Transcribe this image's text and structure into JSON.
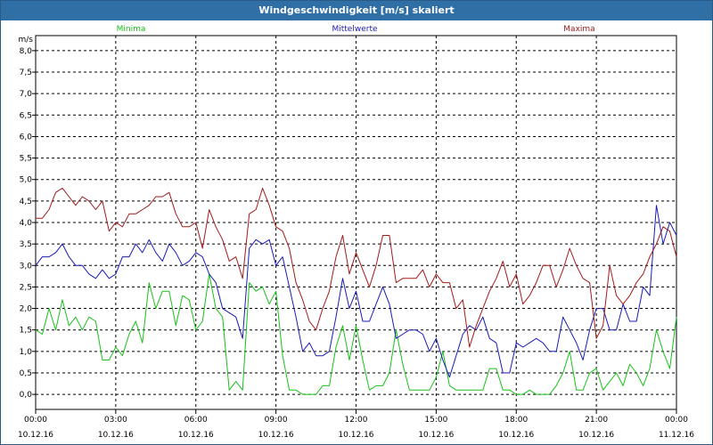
{
  "window": {
    "title": "Windgeschwindigkeit [m/s] skaliert"
  },
  "colors": {
    "minima": "#19c119",
    "mittelwerte": "#1a1ab8",
    "maxima": "#a11b1b",
    "grid": "#000000",
    "axis_text": "#000000"
  },
  "chart_data": {
    "type": "line",
    "title": "Windgeschwindigkeit [m/s] skaliert",
    "ylabel": "m/s",
    "xlabel": "",
    "ylim": [
      -0.35,
      8.35
    ],
    "y_ticks": [
      "0,0",
      "0,5",
      "1,0",
      "1,5",
      "2,0",
      "2,5",
      "3,0",
      "3,5",
      "4,0",
      "4,5",
      "5,0",
      "5,5",
      "6,0",
      "6,5",
      "7,0",
      "7,5",
      "8,0"
    ],
    "x_range_hours": [
      0,
      24
    ],
    "x_ticks": [
      {
        "time": "00:00",
        "date": "10.12.16"
      },
      {
        "time": "03:00",
        "date": "10.12.16"
      },
      {
        "time": "06:00",
        "date": "10.12.16"
      },
      {
        "time": "09:00",
        "date": "10.12.16"
      },
      {
        "time": "12:00",
        "date": "10.12.16"
      },
      {
        "time": "15:00",
        "date": "10.12.16"
      },
      {
        "time": "18:00",
        "date": "10.12.16"
      },
      {
        "time": "21:00",
        "date": "10.12.16"
      },
      {
        "time": "00:00",
        "date": "11.12.16"
      }
    ],
    "grid": true,
    "legend_placement": "top",
    "series": [
      {
        "name": "Minima",
        "points": [
          [
            0,
            1.5
          ],
          [
            0.25,
            1.4
          ],
          [
            0.5,
            2.0
          ],
          [
            0.75,
            1.5
          ],
          [
            1.0,
            2.2
          ],
          [
            1.25,
            1.6
          ],
          [
            1.5,
            1.8
          ],
          [
            1.75,
            1.5
          ],
          [
            2.0,
            1.8
          ],
          [
            2.25,
            1.7
          ],
          [
            2.5,
            0.8
          ],
          [
            2.75,
            0.8
          ],
          [
            3.0,
            1.1
          ],
          [
            3.25,
            0.9
          ],
          [
            3.5,
            1.4
          ],
          [
            3.75,
            1.7
          ],
          [
            4.0,
            1.2
          ],
          [
            4.25,
            2.6
          ],
          [
            4.5,
            2.0
          ],
          [
            4.75,
            2.4
          ],
          [
            5.0,
            2.4
          ],
          [
            5.25,
            1.6
          ],
          [
            5.5,
            2.3
          ],
          [
            5.75,
            2.2
          ],
          [
            6.0,
            1.5
          ],
          [
            6.25,
            1.7
          ],
          [
            6.5,
            2.8
          ],
          [
            6.75,
            2.0
          ],
          [
            7.0,
            1.8
          ],
          [
            7.25,
            0.1
          ],
          [
            7.5,
            0.3
          ],
          [
            7.75,
            0.1
          ],
          [
            8.0,
            2.6
          ],
          [
            8.25,
            2.4
          ],
          [
            8.5,
            2.5
          ],
          [
            8.75,
            2.1
          ],
          [
            9.0,
            2.4
          ],
          [
            9.25,
            0.9
          ],
          [
            9.5,
            0.1
          ],
          [
            9.75,
            0.1
          ],
          [
            10.0,
            0.0
          ],
          [
            10.25,
            0.0
          ],
          [
            10.5,
            0.0
          ],
          [
            10.75,
            0.2
          ],
          [
            11.0,
            0.2
          ],
          [
            11.25,
            1.1
          ],
          [
            11.5,
            1.6
          ],
          [
            11.75,
            0.8
          ],
          [
            12.0,
            1.6
          ],
          [
            12.25,
            0.8
          ],
          [
            12.5,
            0.1
          ],
          [
            12.75,
            0.2
          ],
          [
            13.0,
            0.2
          ],
          [
            13.25,
            0.5
          ],
          [
            13.5,
            1.5
          ],
          [
            13.75,
            0.7
          ],
          [
            14.0,
            0.1
          ],
          [
            14.25,
            0.1
          ],
          [
            14.5,
            0.1
          ],
          [
            14.75,
            0.1
          ],
          [
            15.0,
            0.4
          ],
          [
            15.25,
            1.0
          ],
          [
            15.5,
            0.2
          ],
          [
            15.75,
            0.1
          ],
          [
            16.0,
            0.1
          ],
          [
            16.25,
            0.1
          ],
          [
            16.5,
            0.1
          ],
          [
            16.75,
            0.1
          ],
          [
            17.0,
            0.6
          ],
          [
            17.25,
            0.6
          ],
          [
            17.5,
            0.1
          ],
          [
            17.75,
            0.1
          ],
          [
            18.0,
            0.0
          ],
          [
            18.25,
            0.0
          ],
          [
            18.5,
            0.1
          ],
          [
            18.75,
            0.0
          ],
          [
            19.0,
            0.0
          ],
          [
            19.25,
            0.0
          ],
          [
            19.5,
            0.2
          ],
          [
            19.75,
            0.5
          ],
          [
            20.0,
            1.0
          ],
          [
            20.25,
            0.1
          ],
          [
            20.5,
            0.1
          ],
          [
            20.75,
            0.5
          ],
          [
            21.0,
            0.6
          ],
          [
            21.25,
            0.1
          ],
          [
            21.5,
            0.3
          ],
          [
            21.75,
            0.5
          ],
          [
            22.0,
            0.2
          ],
          [
            22.25,
            0.7
          ],
          [
            22.5,
            0.5
          ],
          [
            22.75,
            0.2
          ],
          [
            23.0,
            0.6
          ],
          [
            23.25,
            1.5
          ],
          [
            23.5,
            1.0
          ],
          [
            23.75,
            0.6
          ],
          [
            24.0,
            1.8
          ]
        ]
      },
      {
        "name": "Mittelwerte",
        "points": [
          [
            0,
            3.0
          ],
          [
            0.25,
            3.2
          ],
          [
            0.5,
            3.2
          ],
          [
            0.75,
            3.3
          ],
          [
            1.0,
            3.5
          ],
          [
            1.25,
            3.2
          ],
          [
            1.5,
            3.0
          ],
          [
            1.75,
            3.0
          ],
          [
            2.0,
            2.8
          ],
          [
            2.25,
            2.7
          ],
          [
            2.5,
            2.9
          ],
          [
            2.75,
            2.7
          ],
          [
            3.0,
            2.8
          ],
          [
            3.25,
            3.2
          ],
          [
            3.5,
            3.2
          ],
          [
            3.75,
            3.5
          ],
          [
            4.0,
            3.3
          ],
          [
            4.25,
            3.6
          ],
          [
            4.5,
            3.3
          ],
          [
            4.75,
            3.1
          ],
          [
            5.0,
            3.5
          ],
          [
            5.25,
            3.3
          ],
          [
            5.5,
            3.0
          ],
          [
            5.75,
            3.1
          ],
          [
            6.0,
            3.3
          ],
          [
            6.25,
            3.2
          ],
          [
            6.5,
            2.8
          ],
          [
            6.75,
            2.6
          ],
          [
            7.0,
            2.0
          ],
          [
            7.25,
            1.9
          ],
          [
            7.5,
            1.8
          ],
          [
            7.75,
            1.3
          ],
          [
            8.0,
            3.4
          ],
          [
            8.25,
            3.6
          ],
          [
            8.5,
            3.5
          ],
          [
            8.75,
            3.6
          ],
          [
            9.0,
            3.0
          ],
          [
            9.25,
            3.2
          ],
          [
            9.5,
            2.5
          ],
          [
            9.75,
            1.8
          ],
          [
            10.0,
            1.0
          ],
          [
            10.25,
            1.2
          ],
          [
            10.5,
            0.9
          ],
          [
            10.75,
            0.9
          ],
          [
            11.0,
            1.0
          ],
          [
            11.25,
            1.8
          ],
          [
            11.5,
            2.7
          ],
          [
            11.75,
            2.0
          ],
          [
            12.0,
            2.4
          ],
          [
            12.25,
            1.7
          ],
          [
            12.5,
            1.7
          ],
          [
            12.75,
            2.1
          ],
          [
            13.0,
            2.5
          ],
          [
            13.25,
            2.1
          ],
          [
            13.5,
            1.3
          ],
          [
            13.75,
            1.4
          ],
          [
            14.0,
            1.5
          ],
          [
            14.25,
            1.5
          ],
          [
            14.5,
            1.4
          ],
          [
            14.75,
            1.0
          ],
          [
            15.0,
            1.3
          ],
          [
            15.25,
            0.8
          ],
          [
            15.5,
            0.4
          ],
          [
            15.75,
            0.9
          ],
          [
            16.0,
            1.4
          ],
          [
            16.25,
            1.6
          ],
          [
            16.5,
            1.5
          ],
          [
            16.75,
            1.8
          ],
          [
            17.0,
            1.3
          ],
          [
            17.25,
            1.2
          ],
          [
            17.5,
            0.5
          ],
          [
            17.75,
            0.5
          ],
          [
            18.0,
            1.2
          ],
          [
            18.25,
            1.1
          ],
          [
            18.5,
            1.2
          ],
          [
            18.75,
            1.3
          ],
          [
            19.0,
            1.2
          ],
          [
            19.25,
            1.0
          ],
          [
            19.5,
            1.0
          ],
          [
            19.75,
            1.8
          ],
          [
            20.0,
            1.5
          ],
          [
            20.25,
            1.2
          ],
          [
            20.5,
            0.8
          ],
          [
            20.75,
            1.5
          ],
          [
            21.0,
            2.0
          ],
          [
            21.25,
            2.0
          ],
          [
            21.5,
            1.5
          ],
          [
            21.75,
            1.5
          ],
          [
            22.0,
            2.1
          ],
          [
            22.25,
            1.7
          ],
          [
            22.5,
            1.7
          ],
          [
            22.75,
            2.5
          ],
          [
            23.0,
            2.3
          ],
          [
            23.25,
            4.4
          ],
          [
            23.5,
            3.5
          ],
          [
            23.75,
            4.0
          ],
          [
            24.0,
            3.7
          ]
        ]
      },
      {
        "name": "Maxima",
        "points": [
          [
            0,
            4.1
          ],
          [
            0.25,
            4.1
          ],
          [
            0.5,
            4.3
          ],
          [
            0.75,
            4.7
          ],
          [
            1.0,
            4.8
          ],
          [
            1.25,
            4.6
          ],
          [
            1.5,
            4.4
          ],
          [
            1.75,
            4.6
          ],
          [
            2.0,
            4.5
          ],
          [
            2.25,
            4.3
          ],
          [
            2.5,
            4.5
          ],
          [
            2.75,
            3.8
          ],
          [
            3.0,
            4.0
          ],
          [
            3.25,
            3.9
          ],
          [
            3.5,
            4.2
          ],
          [
            3.75,
            4.2
          ],
          [
            4.0,
            4.3
          ],
          [
            4.25,
            4.4
          ],
          [
            4.5,
            4.6
          ],
          [
            4.75,
            4.6
          ],
          [
            5.0,
            4.7
          ],
          [
            5.25,
            4.2
          ],
          [
            5.5,
            3.9
          ],
          [
            5.75,
            3.9
          ],
          [
            6.0,
            4.0
          ],
          [
            6.25,
            3.4
          ],
          [
            6.5,
            4.3
          ],
          [
            6.75,
            3.9
          ],
          [
            7.0,
            3.6
          ],
          [
            7.25,
            3.1
          ],
          [
            7.5,
            3.2
          ],
          [
            7.75,
            2.7
          ],
          [
            8.0,
            4.2
          ],
          [
            8.25,
            4.3
          ],
          [
            8.5,
            4.8
          ],
          [
            8.75,
            4.4
          ],
          [
            9.0,
            3.9
          ],
          [
            9.25,
            3.8
          ],
          [
            9.5,
            3.4
          ],
          [
            9.75,
            2.6
          ],
          [
            10.0,
            2.2
          ],
          [
            10.25,
            1.7
          ],
          [
            10.5,
            1.5
          ],
          [
            10.75,
            2.0
          ],
          [
            11.0,
            2.4
          ],
          [
            11.25,
            3.2
          ],
          [
            11.5,
            3.7
          ],
          [
            11.75,
            2.8
          ],
          [
            12.0,
            3.3
          ],
          [
            12.25,
            2.9
          ],
          [
            12.5,
            2.5
          ],
          [
            12.75,
            3.0
          ],
          [
            13.0,
            3.7
          ],
          [
            13.25,
            3.7
          ],
          [
            13.5,
            2.6
          ],
          [
            13.75,
            2.7
          ],
          [
            14.0,
            2.7
          ],
          [
            14.25,
            2.7
          ],
          [
            14.5,
            2.9
          ],
          [
            14.75,
            2.5
          ],
          [
            15.0,
            2.8
          ],
          [
            15.25,
            2.6
          ],
          [
            15.5,
            2.6
          ],
          [
            15.75,
            2.0
          ],
          [
            16.0,
            2.2
          ],
          [
            16.25,
            1.1
          ],
          [
            16.5,
            1.6
          ],
          [
            16.75,
            2.0
          ],
          [
            17.0,
            2.4
          ],
          [
            17.25,
            2.7
          ],
          [
            17.5,
            3.1
          ],
          [
            17.75,
            2.5
          ],
          [
            18.0,
            2.8
          ],
          [
            18.25,
            2.1
          ],
          [
            18.5,
            2.3
          ],
          [
            18.75,
            2.6
          ],
          [
            19.0,
            3.0
          ],
          [
            19.25,
            3.0
          ],
          [
            19.5,
            2.5
          ],
          [
            19.75,
            2.9
          ],
          [
            20.0,
            3.4
          ],
          [
            20.25,
            3.0
          ],
          [
            20.5,
            2.7
          ],
          [
            20.75,
            2.6
          ],
          [
            21.0,
            1.3
          ],
          [
            21.25,
            1.6
          ],
          [
            21.5,
            3.0
          ],
          [
            21.75,
            2.3
          ],
          [
            22.0,
            2.1
          ],
          [
            22.25,
            2.3
          ],
          [
            22.5,
            2.6
          ],
          [
            22.75,
            2.8
          ],
          [
            23.0,
            3.2
          ],
          [
            23.25,
            3.5
          ],
          [
            23.5,
            3.9
          ],
          [
            23.75,
            3.8
          ],
          [
            24.0,
            3.2
          ]
        ]
      }
    ]
  }
}
